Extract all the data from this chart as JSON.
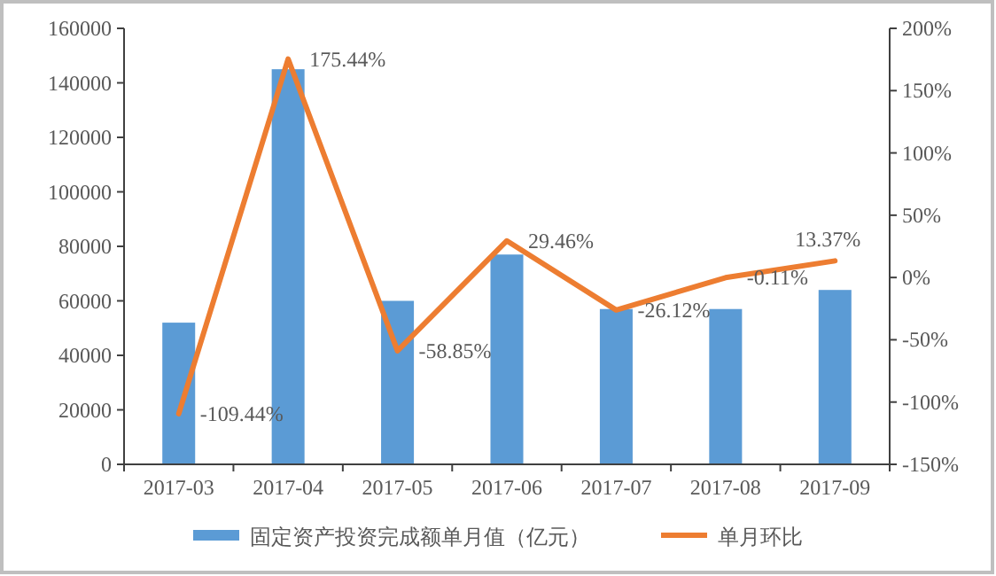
{
  "chart_data": {
    "type": "bar",
    "categories": [
      "2017-03",
      "2017-04",
      "2017-05",
      "2017-06",
      "2017-07",
      "2017-08",
      "2017-09"
    ],
    "series": [
      {
        "name": "固定资产投资完成额单月值（亿元）",
        "color": "#5b9bd5",
        "values": [
          52000,
          145000,
          60000,
          77000,
          57000,
          57000,
          64000
        ]
      },
      {
        "name": "单月环比",
        "type": "line",
        "axis": "y2",
        "color": "#ed7d31",
        "values": [
          -109.44,
          175.44,
          -58.85,
          29.46,
          -26.12,
          -0.11,
          13.37
        ],
        "value_labels": [
          "-109.44%",
          "175.44%",
          "-58.85%",
          "29.46%",
          "-26.12%",
          "-0.11%",
          "13.37%"
        ]
      }
    ],
    "ylim": [
      0,
      160000
    ],
    "yticks": [
      0,
      20000,
      40000,
      60000,
      80000,
      100000,
      120000,
      140000,
      160000
    ],
    "y2lim": [
      -150,
      200
    ],
    "y2ticks": [
      {
        "value": -150,
        "label": "-150%"
      },
      {
        "value": -100,
        "label": "-100%"
      },
      {
        "value": -50,
        "label": "-50%"
      },
      {
        "value": 0,
        "label": "0%"
      },
      {
        "value": 50,
        "label": "50%"
      },
      {
        "value": 100,
        "label": "100%"
      },
      {
        "value": 150,
        "label": "150%"
      },
      {
        "value": 200,
        "label": "200%"
      }
    ],
    "legend": "bottom",
    "grid": false,
    "marker": "none",
    "line_style": "solid"
  }
}
